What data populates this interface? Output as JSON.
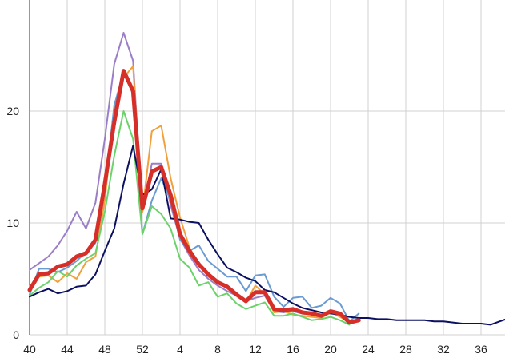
{
  "chart_data": {
    "type": "line",
    "title": "",
    "xlabel": "",
    "ylabel": "",
    "grid": true,
    "x_tick_labels": [
      "40",
      "44",
      "48",
      "52",
      "4",
      "8",
      "12",
      "16",
      "20",
      "24",
      "28",
      "32",
      "36"
    ],
    "y_ticks": [
      0,
      10,
      20
    ],
    "ylim": [
      0,
      30
    ],
    "series": [
      {
        "color": "#9b7ec8",
        "values": [
          5.8,
          6.4,
          7.0,
          8.0,
          9.3,
          11.0,
          9.5,
          11.8,
          17.5,
          24.2,
          27.0,
          24.5,
          11.0,
          15.3,
          15.3,
          11.6,
          8.6,
          7.1,
          5.8,
          5.0,
          4.4,
          3.9,
          3.5,
          3.0,
          3.3,
          3.5,
          2.1,
          2.0,
          2.1,
          1.9,
          1.8,
          1.7,
          2.0,
          1.9,
          1.3,
          null,
          null,
          null,
          null,
          null,
          null,
          null,
          null,
          null,
          null,
          null,
          null,
          null,
          null,
          null,
          null,
          null,
          null,
          null
        ]
      },
      {
        "color": "#f0a03c",
        "values": [
          4.3,
          5.2,
          5.3,
          4.7,
          5.5,
          5.0,
          6.5,
          7.0,
          12.0,
          20.0,
          23.0,
          24.0,
          11.0,
          18.2,
          18.7,
          14.0,
          10.5,
          7.8,
          6.3,
          5.2,
          4.6,
          4.2,
          3.5,
          2.9,
          4.4,
          3.6,
          2.0,
          2.1,
          1.8,
          1.7,
          1.6,
          1.5,
          2.0,
          1.6,
          1.1,
          null,
          null,
          null,
          null,
          null,
          null,
          null,
          null,
          null,
          null,
          null,
          null,
          null,
          null,
          null,
          null,
          null,
          null,
          null
        ]
      },
      {
        "color": "#6a9bd2",
        "values": [
          3.6,
          5.9,
          5.9,
          5.6,
          6.0,
          6.6,
          7.4,
          8.2,
          13.0,
          20.5,
          23.5,
          21.5,
          9.0,
          12.0,
          14.0,
          12.0,
          8.5,
          7.5,
          8.0,
          6.6,
          5.9,
          5.2,
          5.2,
          3.9,
          5.3,
          5.4,
          3.4,
          2.5,
          3.3,
          3.4,
          2.4,
          2.6,
          3.3,
          2.8,
          1.2,
          1.9,
          null,
          null,
          null,
          null,
          null,
          null,
          null,
          null,
          null,
          null,
          null,
          null,
          null,
          null,
          null,
          null,
          null,
          null
        ]
      },
      {
        "color": "#6cd26c",
        "values": [
          3.5,
          4.2,
          4.7,
          5.7,
          5.2,
          6.2,
          6.8,
          7.3,
          11.0,
          16.0,
          20.0,
          17.5,
          9.0,
          11.5,
          10.8,
          9.5,
          6.8,
          6.0,
          4.4,
          4.7,
          3.4,
          3.7,
          2.8,
          2.3,
          2.6,
          2.9,
          1.7,
          1.7,
          1.9,
          1.6,
          1.3,
          1.4,
          1.6,
          1.3,
          0.9,
          null,
          null,
          null,
          null,
          null,
          null,
          null,
          null,
          null,
          null,
          null,
          null,
          null,
          null,
          null,
          null,
          null,
          null,
          null
        ]
      },
      {
        "color": "#0c1060",
        "values": [
          3.4,
          3.8,
          4.1,
          3.7,
          3.9,
          4.3,
          4.4,
          5.4,
          7.5,
          9.5,
          13.5,
          16.9,
          12.5,
          13.0,
          14.8,
          10.4,
          10.3,
          10.1,
          10.0,
          8.5,
          7.2,
          6.0,
          5.6,
          5.1,
          4.8,
          4.0,
          3.8,
          3.3,
          2.8,
          2.4,
          2.2,
          2.0,
          1.9,
          1.8,
          1.6,
          1.5,
          1.5,
          1.4,
          1.4,
          1.3,
          1.3,
          1.3,
          1.3,
          1.2,
          1.2,
          1.1,
          1.0,
          1.0,
          1.0,
          0.9,
          1.2,
          1.5,
          1.9,
          2.6
        ]
      },
      {
        "color": "#d62f2a",
        "values": [
          4.0,
          5.4,
          5.5,
          6.1,
          6.3,
          7.0,
          7.3,
          8.5,
          13.5,
          19.0,
          23.6,
          21.8,
          11.3,
          14.6,
          15.0,
          12.5,
          9.0,
          7.5,
          6.3,
          5.4,
          4.7,
          4.3,
          3.6,
          3.0,
          3.8,
          3.8,
          2.3,
          2.2,
          2.3,
          2.0,
          1.9,
          1.7,
          2.1,
          1.9,
          1.1,
          1.3,
          null,
          null,
          null,
          null,
          null,
          null,
          null,
          null,
          null,
          null,
          null,
          null,
          null,
          null,
          null,
          null,
          null,
          null
        ],
        "emphasized": true
      }
    ]
  }
}
